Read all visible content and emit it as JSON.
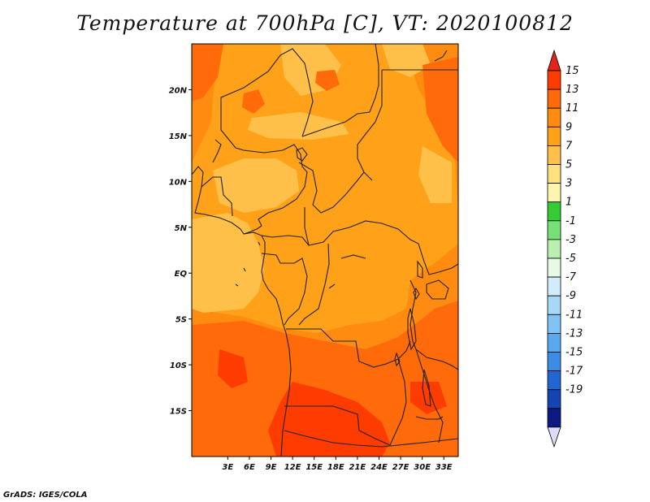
{
  "title": "Temperature at 700hPa [C], VT: 2020100812",
  "credit": "GrADS: IGES/COLA",
  "map": {
    "projection": "lat-lon",
    "lon_range": [
      -2,
      35
    ],
    "lat_range": [
      -20,
      25
    ],
    "x_ticks": [
      "3E",
      "6E",
      "9E",
      "12E",
      "15E",
      "18E",
      "21E",
      "24E",
      "27E",
      "30E",
      "33E"
    ],
    "x_tick_values": [
      3,
      6,
      9,
      12,
      15,
      18,
      21,
      24,
      27,
      30,
      33
    ],
    "y_ticks": [
      "20N",
      "15N",
      "10N",
      "5N",
      "EQ",
      "5S",
      "10S",
      "15S"
    ],
    "y_tick_values": [
      20,
      15,
      10,
      5,
      0,
      -5,
      -10,
      -15
    ]
  },
  "colorbar": {
    "labels": [
      "15",
      "13",
      "11",
      "9",
      "7",
      "5",
      "3",
      "1",
      "-1",
      "-3",
      "-5",
      "-7",
      "-9",
      "-11",
      "-13",
      "-15",
      "-17",
      "-19"
    ],
    "colors": {
      "top_arrow": "#e0261a",
      "bands": [
        "#ff3c00",
        "#ff6a0a",
        "#ff8c10",
        "#ffa21a",
        "#ffc04a",
        "#ffe080",
        "#fff5b0",
        "#33cc33",
        "#77e077",
        "#b8f0b0",
        "#e6fae6",
        "#d2ecfa",
        "#a8d8f8",
        "#80c4f4",
        "#5aa8ee",
        "#3c8ce6",
        "#2266d4",
        "#1444b0",
        "#0a1a80"
      ],
      "bottom_arrow": "#dcdcf8"
    }
  },
  "colors": {
    "deep_red": "#ff3c00",
    "red_orange": "#ff6a0a",
    "orange": "#ff8c10",
    "amber": "#ffa21a",
    "light_orange": "#ffc04a",
    "border": "#222222"
  }
}
